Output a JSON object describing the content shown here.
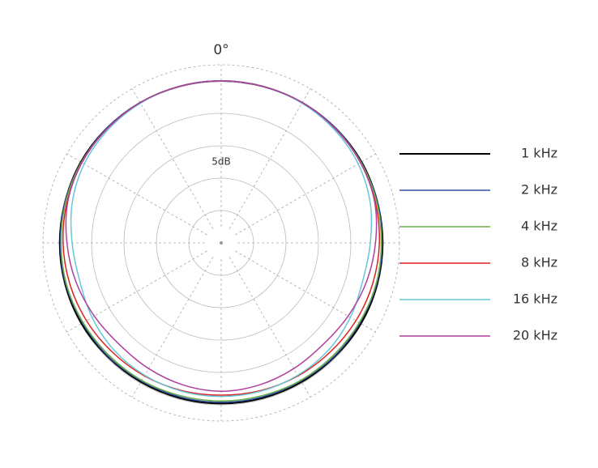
{
  "chart_data": {
    "type": "polar",
    "angle_ticks": [
      {
        "value": 0,
        "label": "0°"
      }
    ],
    "ring_label": "5dB",
    "angles": [
      0,
      15,
      30,
      45,
      60,
      75,
      90,
      105,
      120,
      135,
      150,
      165,
      180,
      195,
      210,
      225,
      240,
      255,
      270,
      285,
      300,
      315,
      330,
      345
    ],
    "thetagrid": [
      0,
      30,
      60,
      90,
      120,
      150,
      180,
      210,
      240,
      270,
      300,
      330
    ],
    "rlim": [
      -25,
      2.5
    ],
    "rticks": [
      -20,
      -15,
      -10,
      -5,
      0
    ],
    "series": [
      {
        "name": "1 kHz",
        "color": "#000000",
        "values": [
          0,
          0,
          0,
          0,
          0,
          -0.1,
          -0.1,
          -0.1,
          -0.1,
          -0.2,
          -0.2,
          -0.2,
          -0.2,
          -0.2,
          -0.2,
          -0.2,
          -0.1,
          -0.1,
          -0.1,
          -0.1,
          0,
          0,
          0,
          0
        ]
      },
      {
        "name": "2 kHz",
        "color": "#3050a0",
        "values": [
          0,
          0,
          0,
          0,
          -0.1,
          -0.1,
          -0.2,
          -0.2,
          -0.3,
          -0.3,
          -0.4,
          -0.4,
          -0.4,
          -0.4,
          -0.4,
          -0.3,
          -0.3,
          -0.2,
          -0.2,
          -0.1,
          -0.1,
          0,
          0,
          0
        ]
      },
      {
        "name": "4 kHz",
        "color": "#6ab04c",
        "values": [
          0,
          0,
          0,
          -0.1,
          -0.1,
          -0.2,
          -0.3,
          -0.3,
          -0.4,
          -0.5,
          -0.5,
          -0.6,
          -0.6,
          -0.6,
          -0.5,
          -0.5,
          -0.4,
          -0.3,
          -0.3,
          -0.2,
          -0.1,
          -0.1,
          0,
          0
        ]
      },
      {
        "name": "8 kHz",
        "color": "#e02020",
        "values": [
          0,
          0,
          0,
          -0.1,
          -0.2,
          -0.4,
          -0.6,
          -0.8,
          -1.0,
          -1.2,
          -1.3,
          -1.4,
          -1.5,
          -1.4,
          -1.3,
          -1.2,
          -1.0,
          -0.8,
          -0.6,
          -0.4,
          -0.2,
          -0.1,
          0,
          0
        ]
      },
      {
        "name": "16 kHz",
        "color": "#66c8d8",
        "values": [
          0,
          0,
          -0.1,
          -0.3,
          -0.6,
          -1.2,
          -2.0,
          -2.4,
          -2.0,
          -1.6,
          -1.4,
          -1.3,
          -1.3,
          -1.3,
          -1.4,
          -1.6,
          -2.0,
          -2.4,
          -2.0,
          -1.2,
          -0.6,
          -0.3,
          -0.1,
          0
        ]
      },
      {
        "name": "20 kHz",
        "color": "#b040a0",
        "values": [
          0,
          0,
          0,
          -0.1,
          -0.2,
          -0.5,
          -1.2,
          -1.8,
          -2.4,
          -2.8,
          -2.6,
          -2.3,
          -2.1,
          -2.3,
          -2.6,
          -2.8,
          -2.4,
          -1.8,
          -1.2,
          -0.5,
          -0.2,
          -0.1,
          0,
          0
        ]
      }
    ]
  }
}
